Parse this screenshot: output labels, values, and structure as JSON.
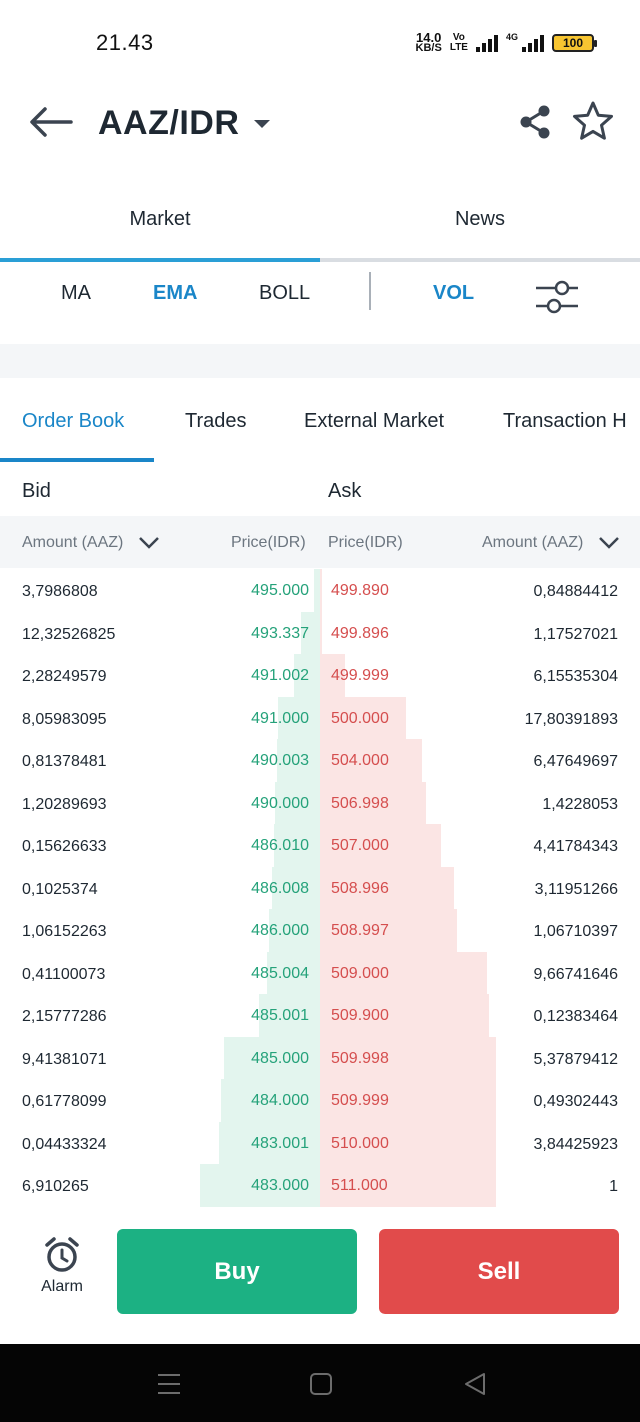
{
  "status_bar": {
    "time": "21.43",
    "net_speed_value": "14.0",
    "net_speed_unit": "KB/S",
    "volte_top": "Vo",
    "volte_bottom": "LTE",
    "network_type": "4G",
    "battery_level": "100",
    "battery_color": "#f7c531"
  },
  "header": {
    "title": "AAZ/IDR",
    "back_icon": "arrow-left-icon",
    "dropdown_icon": "caret-down-icon",
    "share_icon": "share-icon",
    "favorite_icon": "star-outline-icon"
  },
  "top_tabs": [
    {
      "label": "Market",
      "active": true
    },
    {
      "label": "News",
      "active": false
    }
  ],
  "indicators": {
    "ma": "MA",
    "ema": "EMA",
    "boll": "BOLL",
    "vol": "VOL",
    "settings_icon": "sliders-icon"
  },
  "order_tabs": [
    {
      "label": "Order Book",
      "active": true
    },
    {
      "label": "Trades",
      "active": false
    },
    {
      "label": "External Market",
      "active": false
    },
    {
      "label": "Transaction H",
      "active": false
    }
  ],
  "book": {
    "bid_label": "Bid",
    "ask_label": "Ask",
    "bid_amount_header": "Amount (AAZ)",
    "bid_price_header": "Price(IDR)",
    "ask_price_header": "Price(IDR)",
    "ask_amount_header": "Amount (AAZ)",
    "bid_color": "#25a27a",
    "ask_color": "#d54e4e",
    "rows": [
      {
        "bid_amount": "3,7986808",
        "bid_price": "495.000",
        "ask_price": "499.890",
        "ask_amount": "0,84884412",
        "bid_depth": 0.04,
        "ask_depth": 0.01
      },
      {
        "bid_amount": "12,32526825",
        "bid_price": "493.337",
        "ask_price": "499.896",
        "ask_amount": "1,17527021",
        "bid_depth": 0.12,
        "ask_depth": 0.01
      },
      {
        "bid_amount": "2,28249579",
        "bid_price": "491.002",
        "ask_price": "499.999",
        "ask_amount": "6,15535304",
        "bid_depth": 0.16,
        "ask_depth": 0.14
      },
      {
        "bid_amount": "8,05983095",
        "bid_price": "491.000",
        "ask_price": "500.000",
        "ask_amount": "17,80391893",
        "bid_depth": 0.26,
        "ask_depth": 0.49
      },
      {
        "bid_amount": "0,81378481",
        "bid_price": "490.003",
        "ask_price": "504.000",
        "ask_amount": "6,47649697",
        "bid_depth": 0.27,
        "ask_depth": 0.58
      },
      {
        "bid_amount": "1,20289693",
        "bid_price": "490.000",
        "ask_price": "506.998",
        "ask_amount": "1,4228053",
        "bid_depth": 0.28,
        "ask_depth": 0.6
      },
      {
        "bid_amount": "0,15626633",
        "bid_price": "486.010",
        "ask_price": "507.000",
        "ask_amount": "4,41784343",
        "bid_depth": 0.29,
        "ask_depth": 0.69
      },
      {
        "bid_amount": "0,1025374",
        "bid_price": "486.008",
        "ask_price": "508.996",
        "ask_amount": "3,11951266",
        "bid_depth": 0.3,
        "ask_depth": 0.76
      },
      {
        "bid_amount": "1,06152263",
        "bid_price": "486.000",
        "ask_price": "508.997",
        "ask_amount": "1,06710397",
        "bid_depth": 0.32,
        "ask_depth": 0.78
      },
      {
        "bid_amount": "0,41100073",
        "bid_price": "485.004",
        "ask_price": "509.000",
        "ask_amount": "9,66741646",
        "bid_depth": 0.33,
        "ask_depth": 0.95
      },
      {
        "bid_amount": "2,15777286",
        "bid_price": "485.001",
        "ask_price": "509.900",
        "ask_amount": "0,12383464",
        "bid_depth": 0.38,
        "ask_depth": 0.96
      },
      {
        "bid_amount": "9,41381071",
        "bid_price": "485.000",
        "ask_price": "509.998",
        "ask_amount": "5,37879412",
        "bid_depth": 0.6,
        "ask_depth": 1.0
      },
      {
        "bid_amount": "0,61778099",
        "bid_price": "484.000",
        "ask_price": "509.999",
        "ask_amount": "0,49302443",
        "bid_depth": 0.62,
        "ask_depth": 1.0
      },
      {
        "bid_amount": "0,04433324",
        "bid_price": "483.001",
        "ask_price": "510.000",
        "ask_amount": "3,84425923",
        "bid_depth": 0.63,
        "ask_depth": 1.0
      },
      {
        "bid_amount": "6,910265",
        "bid_price": "483.000",
        "ask_price": "511.000",
        "ask_amount": "1",
        "bid_depth": 0.75,
        "ask_depth": 1.0
      }
    ]
  },
  "actions": {
    "alarm_label": "Alarm",
    "alarm_icon": "alarm-clock-icon",
    "buy_label": "Buy",
    "sell_label": "Sell",
    "buy_color": "#1cb183",
    "sell_color": "#e14b4b"
  },
  "nav_bar": {
    "menu_icon": "menu-icon",
    "home_icon": "home-square-icon",
    "back_icon": "back-triangle-icon"
  }
}
